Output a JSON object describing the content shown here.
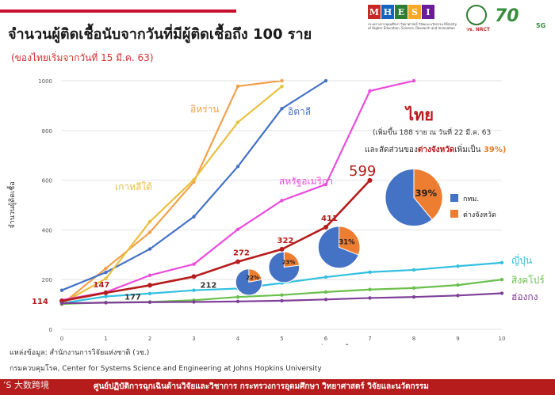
{
  "header": {
    "title": "จำนวนผู้ติดเชื้อนับจากวันที่มีผู้ติดเชื้อถึง 100 ราย",
    "subtitle": "(ของไทยเริ่มจากวันที่ 15 มี.ค. 63)"
  },
  "logos": {
    "mhesi_letters": [
      "M",
      "H",
      "E",
      "S",
      "I"
    ],
    "mhesi_colors": [
      "#c62828",
      "#1565c0",
      "#2e7d32",
      "#f9a825",
      "#6a1b9a"
    ],
    "mhesi_caption": "กระทรวงการอุดมศึกษา วิทยาศาสตร์ วิจัยและนวัตกรรม Ministry of Higher Education, Science, Research and Innovation",
    "nrct_label": "วช. NRCT",
    "anniv_number": "70",
    "anniv_suffix": "5G"
  },
  "annotations": {
    "thai_title": "ไทย",
    "thai_note1": "(เพิ่มขึ้น 188 ราย ณ วันที่ 22 มี.ค. 63",
    "thai_note2_pre": "และสัดส่วนของ",
    "thai_note2_mid": "ต่างจังหวัด",
    "thai_note2_post": "เพิ่มเป็น",
    "thai_note2_pct": "39%)",
    "highlight_599": "599"
  },
  "chart_data": {
    "type": "line",
    "xlabel": "จำนวนวันหลังจากวันที่มีผู้ติดเชื้อ100 ราย",
    "ylabel": "จำนวนผู้ติดเชื้อ",
    "xlim": [
      0,
      10
    ],
    "ylim": [
      0,
      1000
    ],
    "xticks": [
      0,
      1,
      2,
      3,
      4,
      5,
      6,
      7,
      8,
      9,
      10
    ],
    "yticks": [
      0,
      200,
      400,
      600,
      800,
      1000
    ],
    "grid": true,
    "series": [
      {
        "name": "อิหร่าน",
        "color": "#f0a04b",
        "x": [
          0,
          1,
          2,
          3,
          4,
          5
        ],
        "y": [
          100,
          245,
          390,
          593,
          978,
          1000
        ]
      },
      {
        "name": "อิตาลี",
        "color": "#4472c4",
        "x": [
          0,
          1,
          2,
          3,
          4,
          5,
          6
        ],
        "y": [
          157,
          229,
          323,
          453,
          655,
          888,
          1000
        ]
      },
      {
        "name": "เกาหลีใต้",
        "color": "#e8c040",
        "x": [
          0,
          1,
          2,
          3,
          4,
          5
        ],
        "y": [
          104,
          204,
          433,
          602,
          833,
          977
        ]
      },
      {
        "name": "สหรัฐอเมริกา",
        "color": "#ea4cdb",
        "x": [
          0,
          1,
          2,
          3,
          4,
          5,
          6,
          7,
          8
        ],
        "y": [
          118,
          149,
          217,
          262,
          402,
          518,
          583,
          959,
          1000
        ]
      },
      {
        "name": "ไทย",
        "color": "#b71c1c",
        "x": [
          0,
          1,
          2,
          3,
          4,
          5,
          6,
          7
        ],
        "y": [
          114,
          147,
          177,
          212,
          272,
          322,
          411,
          599
        ]
      },
      {
        "name": "ญี่ปุ่น",
        "color": "#33c0e0",
        "x": [
          0,
          1,
          2,
          3,
          4,
          5,
          6,
          7,
          8,
          9,
          10
        ],
        "y": [
          105,
          132,
          144,
          157,
          164,
          186,
          210,
          230,
          239,
          254,
          268
        ]
      },
      {
        "name": "สิงคโปร์",
        "color": "#6abf4b",
        "x": [
          0,
          1,
          2,
          3,
          4,
          5,
          6,
          7,
          8,
          9,
          10
        ],
        "y": [
          102,
          108,
          110,
          117,
          130,
          138,
          150,
          160,
          166,
          178,
          200
        ]
      },
      {
        "name": "ฮ่องกง",
        "color": "#7e3f98",
        "x": [
          0,
          1,
          2,
          3,
          4,
          5,
          6,
          7,
          8,
          9,
          10
        ],
        "y": [
          105,
          107,
          109,
          110,
          112,
          115,
          120,
          126,
          130,
          136,
          145
        ]
      }
    ],
    "point_labels": [
      {
        "series": "ไทย",
        "x": 0,
        "y": 114,
        "text": "114"
      },
      {
        "series": "ไทย",
        "x": 1,
        "y": 147,
        "text": "147"
      },
      {
        "series": "ไทย",
        "x": 2,
        "y": 177,
        "text": "177"
      },
      {
        "series": "ไทย",
        "x": 3,
        "y": 212,
        "text": "212"
      },
      {
        "series": "ไทย",
        "x": 4,
        "y": 272,
        "text": "272"
      },
      {
        "series": "ไทย",
        "x": 5,
        "y": 322,
        "text": "322"
      },
      {
        "series": "ไทย",
        "x": 6,
        "y": 411,
        "text": "411"
      }
    ],
    "pies": [
      {
        "x": 4.25,
        "y": 190,
        "r": 0.6,
        "province_pct": 22,
        "label": "22%"
      },
      {
        "x": 5.05,
        "y": 250,
        "r": 0.7,
        "province_pct": 23,
        "label": "23%"
      },
      {
        "x": 6.3,
        "y": 330,
        "r": 0.95,
        "province_pct": 31,
        "label": "31%"
      },
      {
        "x": 8.0,
        "y": 530,
        "r": 1.3,
        "province_pct": 39,
        "label": "39%"
      }
    ],
    "pie_colors": {
      "bangkok": "#4472c4",
      "province": "#ed7d31"
    },
    "pie_legend": [
      {
        "label": "กทม.",
        "color": "#4472c4"
      },
      {
        "label": "ต่างจังหวัด",
        "color": "#ed7d31"
      }
    ]
  },
  "sources": {
    "line1": "แหล่งข้อมูล: สำนักงานการวิจัยแห่งชาติ (วช.)",
    "line2": "กรมควบคุมโรค, Center for Systems Science and Engineering at Johns Hopkins University"
  },
  "footer": {
    "text": "ศูนย์ปฏิบัติการฉุกเฉินด้านวิจัยและวิชาการ กระทรวงการอุดมศึกษา วิทยาศาสตร์ วิจัยและนวัตกรรม",
    "watermark": "’S 大数跨境"
  }
}
